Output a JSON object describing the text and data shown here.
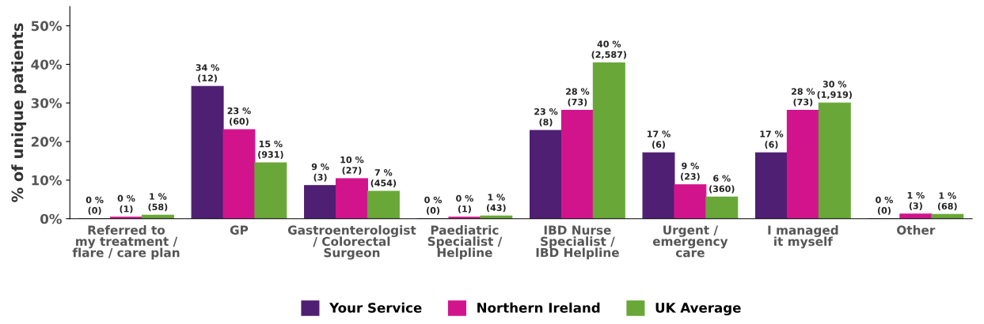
{
  "chart_data": {
    "type": "bar",
    "ylabel": "% of unique patients",
    "categories": [
      "Referred to\nmy treatment /\nflare / care plan",
      "GP",
      "Gastroenterologist\n/ Colorectal\nSurgeon",
      "Paediatric\nSpecialist /\nHelpline",
      "IBD Nurse\nSpecialist /\nIBD Helpline",
      "Urgent /\nemergency\ncare",
      "I managed\nit myself",
      "Other"
    ],
    "series": [
      {
        "name": "Your Service",
        "color": "#4e1f72",
        "values": [
          0,
          34.3,
          8.6,
          0,
          22.9,
          17.1,
          17.1,
          0
        ],
        "value_labels": [
          "0 %\n(0)",
          "34 %\n(12)",
          "9 %\n(3)",
          "0 %\n(0)",
          "23 %\n(8)",
          "17 %\n(6)",
          "17 %\n(6)",
          "0 %\n(0)"
        ]
      },
      {
        "name": "Northern Ireland",
        "color": "#d2148c",
        "values": [
          0.4,
          23.1,
          10.4,
          0.4,
          28.1,
          8.8,
          28.1,
          1.2
        ],
        "value_labels": [
          "0 %\n(1)",
          "23 %\n(60)",
          "10 %\n(27)",
          "0 %\n(1)",
          "28 %\n(73)",
          "9 %\n(23)",
          "28 %\n(73)",
          "1 %\n(3)"
        ]
      },
      {
        "name": "UK Average",
        "color": "#6aa739",
        "values": [
          0.9,
          14.5,
          7.1,
          0.7,
          40.4,
          5.6,
          30.0,
          1.1
        ],
        "value_labels": [
          "1 %\n(58)",
          "15 %\n(931)",
          "7 %\n(454)",
          "1 %\n(43)",
          "40 %\n(2,587)",
          "6 %\n(360)",
          "30 %\n(1,919)",
          "1 %\n(68)"
        ]
      }
    ],
    "ylim": [
      0,
      55
    ],
    "yticks": [
      {
        "value": 0,
        "label": "0%"
      },
      {
        "value": 10,
        "label": "10%"
      },
      {
        "value": 20,
        "label": "20%"
      },
      {
        "value": 30,
        "label": "30%"
      },
      {
        "value": 40,
        "label": "40%"
      },
      {
        "value": 50,
        "label": "50%"
      }
    ],
    "grid": false,
    "legend": "bottom"
  }
}
